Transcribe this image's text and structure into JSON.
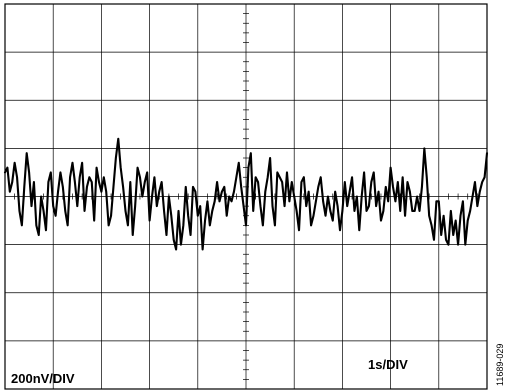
{
  "figure_id": "11689-029",
  "chart_data": {
    "type": "line",
    "title": "",
    "xlabel": "",
    "ylabel": "",
    "grid": true,
    "x_divisions": 10,
    "y_divisions": 8,
    "xlim": [
      0,
      10
    ],
    "ylim": [
      -4,
      4
    ],
    "x_scale_label": "1s/DIV",
    "y_scale_label": "200nV/DIV",
    "colors": {
      "trace": "#000000",
      "grid": "#000000",
      "background": "#ffffff"
    },
    "series": [
      {
        "x": [
          0.0,
          0.05,
          0.1,
          0.15,
          0.2,
          0.25,
          0.3,
          0.35,
          0.4,
          0.45,
          0.5,
          0.55,
          0.6,
          0.65,
          0.7,
          0.75,
          0.8,
          0.85,
          0.9,
          0.95,
          1.0,
          1.05,
          1.1,
          1.15,
          1.2,
          1.25,
          1.3,
          1.35,
          1.4,
          1.45,
          1.5,
          1.55,
          1.6,
          1.65,
          1.7,
          1.75,
          1.8,
          1.85,
          1.9,
          1.95,
          2.0,
          2.05,
          2.1,
          2.15,
          2.2,
          2.25,
          2.3,
          2.35,
          2.4,
          2.45,
          2.5,
          2.55,
          2.6,
          2.65,
          2.7,
          2.75,
          2.8,
          2.85,
          2.9,
          2.95,
          3.0,
          3.05,
          3.1,
          3.15,
          3.2,
          3.25,
          3.3,
          3.35,
          3.4,
          3.45,
          3.5,
          3.55,
          3.6,
          3.65,
          3.7,
          3.75,
          3.8,
          3.85,
          3.9,
          3.95,
          4.0,
          4.05,
          4.1,
          4.15,
          4.2,
          4.25,
          4.3,
          4.35,
          4.4,
          4.45,
          4.5,
          4.55,
          4.6,
          4.65,
          4.7,
          4.75,
          4.8,
          4.85,
          4.9,
          4.95,
          5.0,
          5.05,
          5.1,
          5.15,
          5.2,
          5.25,
          5.3,
          5.35,
          5.4,
          5.45,
          5.5,
          5.55,
          5.6,
          5.65,
          5.7,
          5.75,
          5.8,
          5.85,
          5.9,
          5.95,
          6.0,
          6.05,
          6.1,
          6.15,
          6.2,
          6.25,
          6.3,
          6.35,
          6.4,
          6.45,
          6.5,
          6.55,
          6.6,
          6.65,
          6.7,
          6.75,
          6.8,
          6.85,
          6.9,
          6.95,
          7.0,
          7.05,
          7.1,
          7.15,
          7.2,
          7.25,
          7.3,
          7.35,
          7.4,
          7.45,
          7.5,
          7.55,
          7.6,
          7.65,
          7.7,
          7.75,
          7.8,
          7.85,
          7.9,
          7.95,
          8.0,
          8.05,
          8.1,
          8.15,
          8.2,
          8.25,
          8.3,
          8.35,
          8.4,
          8.45,
          8.5,
          8.55,
          8.6,
          8.65,
          8.7,
          8.75,
          8.8,
          8.85,
          8.9,
          8.95,
          9.0,
          9.05,
          9.1,
          9.15,
          9.2,
          9.25,
          9.3,
          9.35,
          9.4,
          9.45,
          9.5,
          9.55,
          9.6,
          9.65,
          9.7,
          9.75,
          9.8,
          9.85,
          9.9,
          9.95,
          10.0
        ],
        "y": [
          0.5,
          0.6,
          0.1,
          0.3,
          0.7,
          0.4,
          -0.3,
          -0.6,
          0.2,
          0.9,
          0.5,
          -0.2,
          0.3,
          -0.6,
          -0.8,
          0.0,
          -0.3,
          -0.7,
          0.3,
          0.5,
          -0.2,
          -0.4,
          0.1,
          0.5,
          0.2,
          -0.3,
          -0.6,
          0.4,
          0.7,
          0.3,
          -0.2,
          0.4,
          0.7,
          -0.3,
          0.2,
          0.4,
          0.3,
          -0.5,
          0.6,
          0.3,
          0.1,
          0.4,
          0.1,
          -0.6,
          -0.4,
          0.2,
          0.8,
          1.2,
          0.6,
          0.2,
          -0.3,
          -0.6,
          0.3,
          -0.8,
          -0.2,
          0.6,
          0.4,
          0.0,
          0.3,
          0.5,
          -0.5,
          0.0,
          0.4,
          -0.2,
          0.1,
          0.3,
          -0.3,
          -0.8,
          0.0,
          -0.4,
          -0.9,
          -1.1,
          -0.3,
          -1.0,
          -0.6,
          0.2,
          -0.4,
          -0.8,
          0.2,
          0.1,
          -0.4,
          -0.2,
          -1.1,
          -0.5,
          -0.1,
          -0.6,
          -0.3,
          -0.1,
          0.3,
          -0.1,
          0.1,
          0.2,
          -0.4,
          0.0,
          -0.1,
          0.1,
          0.4,
          0.7,
          0.2,
          -0.2,
          -0.6,
          0.6,
          0.9,
          -0.3,
          0.4,
          0.3,
          -0.2,
          -0.6,
          0.1,
          0.4,
          0.8,
          -0.2,
          -0.6,
          0.5,
          0.4,
          0.3,
          -0.2,
          0.5,
          -0.1,
          0.3,
          0.0,
          -0.3,
          -0.7,
          0.3,
          0.4,
          -0.2,
          0.1,
          -0.6,
          -0.4,
          -0.1,
          0.2,
          0.4,
          -0.1,
          -0.4,
          0.0,
          -0.3,
          -0.5,
          0.1,
          -0.2,
          -0.7,
          -0.3,
          0.3,
          -0.2,
          0.1,
          0.4,
          -0.3,
          0.0,
          -0.7,
          0.0,
          0.5,
          -0.3,
          -0.2,
          0.3,
          0.5,
          -0.2,
          0.1,
          -0.5,
          -0.3,
          0.2,
          -0.1,
          0.6,
          0.2,
          -0.1,
          0.3,
          -0.3,
          0.4,
          -0.4,
          0.3,
          0.1,
          -0.3,
          -0.3,
          0.0,
          -0.3,
          0.2,
          1.0,
          0.4,
          -0.4,
          -0.6,
          -0.9,
          -0.1,
          -0.1,
          -0.8,
          -0.4,
          -0.9,
          -1.0,
          -0.3,
          -0.8,
          -0.5,
          -1.0,
          -0.4,
          -0.1,
          -1.0,
          -0.5,
          -0.3,
          0.0,
          0.3,
          -0.2,
          0.1,
          0.3,
          0.4,
          0.9
        ]
      }
    ]
  }
}
